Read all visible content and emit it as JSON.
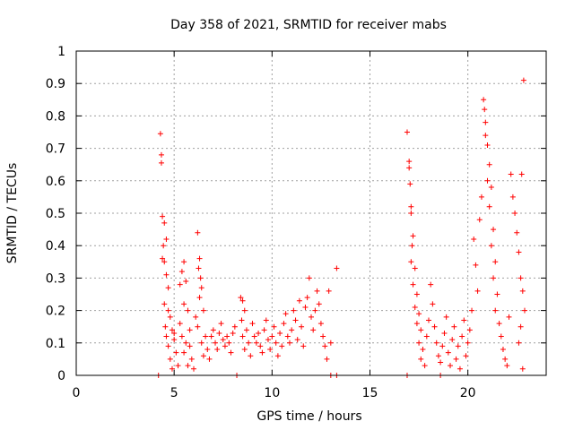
{
  "chart_data": {
    "type": "scatter",
    "title": "Day 358 of 2021, SRMTID for receiver mabs",
    "xlabel": "GPS time / hours",
    "ylabel": "SRMTID / TECUs",
    "xlim": [
      0,
      24
    ],
    "ylim": [
      0,
      1
    ],
    "xticks": [
      0,
      5,
      10,
      15,
      20
    ],
    "xtick_labels": [
      "0",
      "5",
      "10",
      "15",
      "20"
    ],
    "yticks": [
      0,
      0.1,
      0.2,
      0.3,
      0.4,
      0.5,
      0.6,
      0.7,
      0.8,
      0.9,
      1
    ],
    "ytick_labels": [
      "0",
      "0.1",
      "0.2",
      "0.3",
      "0.4",
      "0.5",
      "0.6",
      "0.7",
      "0.8",
      "0.9",
      "1"
    ],
    "grid": true,
    "legend": "none",
    "marker": "plus",
    "color": "#ff0000",
    "series": [
      {
        "values_xy": [
          [
            4.3,
            0.745
          ],
          [
            4.35,
            0.68
          ],
          [
            4.35,
            0.655
          ],
          [
            4.4,
            0.49
          ],
          [
            4.5,
            0.47
          ],
          [
            4.45,
            0.4
          ],
          [
            4.6,
            0.42
          ],
          [
            4.4,
            0.36
          ],
          [
            4.5,
            0.35
          ],
          [
            4.6,
            0.31
          ],
          [
            4.7,
            0.27
          ],
          [
            4.5,
            0.22
          ],
          [
            4.7,
            0.2
          ],
          [
            4.8,
            0.18
          ],
          [
            4.55,
            0.15
          ],
          [
            4.9,
            0.14
          ],
          [
            4.6,
            0.12
          ],
          [
            5.0,
            0.11
          ],
          [
            4.7,
            0.09
          ],
          [
            5.1,
            0.07
          ],
          [
            4.8,
            0.05
          ],
          [
            5.2,
            0.03
          ],
          [
            4.9,
            0.02
          ],
          [
            5.0,
            0.13
          ],
          [
            5.3,
            0.16
          ],
          [
            5.5,
            0.35
          ],
          [
            5.4,
            0.32
          ],
          [
            5.6,
            0.29
          ],
          [
            5.3,
            0.28
          ],
          [
            5.5,
            0.22
          ],
          [
            5.7,
            0.2
          ],
          [
            5.4,
            0.12
          ],
          [
            5.6,
            0.1
          ],
          [
            5.8,
            0.09
          ],
          [
            5.5,
            0.07
          ],
          [
            5.9,
            0.05
          ],
          [
            5.7,
            0.03
          ],
          [
            6.0,
            0.02
          ],
          [
            5.8,
            0.14
          ],
          [
            6.1,
            0.18
          ],
          [
            6.2,
            0.44
          ],
          [
            6.3,
            0.36
          ],
          [
            6.25,
            0.33
          ],
          [
            6.35,
            0.3
          ],
          [
            6.4,
            0.27
          ],
          [
            6.3,
            0.24
          ],
          [
            6.5,
            0.2
          ],
          [
            6.2,
            0.15
          ],
          [
            6.6,
            0.12
          ],
          [
            6.4,
            0.1
          ],
          [
            6.7,
            0.08
          ],
          [
            6.5,
            0.06
          ],
          [
            6.8,
            0.05
          ],
          [
            6.9,
            0.12
          ],
          [
            7.0,
            0.14
          ],
          [
            7.1,
            0.1
          ],
          [
            7.2,
            0.08
          ],
          [
            7.3,
            0.13
          ],
          [
            7.4,
            0.16
          ],
          [
            7.5,
            0.11
          ],
          [
            7.6,
            0.09
          ],
          [
            7.7,
            0.12
          ],
          [
            7.8,
            0.1
          ],
          [
            7.9,
            0.07
          ],
          [
            8.0,
            0.13
          ],
          [
            8.1,
            0.15
          ],
          [
            8.4,
            0.24
          ],
          [
            8.5,
            0.23
          ],
          [
            8.6,
            0.2
          ],
          [
            8.45,
            0.17
          ],
          [
            8.7,
            0.14
          ],
          [
            8.5,
            0.12
          ],
          [
            8.8,
            0.1
          ],
          [
            8.6,
            0.08
          ],
          [
            8.9,
            0.06
          ],
          [
            9.0,
            0.16
          ],
          [
            9.1,
            0.12
          ],
          [
            9.2,
            0.1
          ],
          [
            9.3,
            0.13
          ],
          [
            9.4,
            0.09
          ],
          [
            9.5,
            0.07
          ],
          [
            9.6,
            0.14
          ],
          [
            9.7,
            0.17
          ],
          [
            9.8,
            0.11
          ],
          [
            9.9,
            0.08
          ],
          [
            10.0,
            0.12
          ],
          [
            10.1,
            0.15
          ],
          [
            10.2,
            0.1
          ],
          [
            10.3,
            0.06
          ],
          [
            10.4,
            0.13
          ],
          [
            10.5,
            0.09
          ],
          [
            10.6,
            0.16
          ],
          [
            10.7,
            0.19
          ],
          [
            10.8,
            0.12
          ],
          [
            10.9,
            0.1
          ],
          [
            11.0,
            0.14
          ],
          [
            11.1,
            0.2
          ],
          [
            11.2,
            0.17
          ],
          [
            11.3,
            0.11
          ],
          [
            11.4,
            0.23
          ],
          [
            11.5,
            0.15
          ],
          [
            11.6,
            0.09
          ],
          [
            11.7,
            0.21
          ],
          [
            11.8,
            0.24
          ],
          [
            11.9,
            0.3
          ],
          [
            12.0,
            0.18
          ],
          [
            12.1,
            0.14
          ],
          [
            12.2,
            0.2
          ],
          [
            12.3,
            0.26
          ],
          [
            12.4,
            0.22
          ],
          [
            12.5,
            0.16
          ],
          [
            12.6,
            0.12
          ],
          [
            12.7,
            0.09
          ],
          [
            12.8,
            0.05
          ],
          [
            12.9,
            0.26
          ],
          [
            13.0,
            0.1
          ],
          [
            13.3,
            0.33
          ],
          [
            16.9,
            0.75
          ],
          [
            17.0,
            0.66
          ],
          [
            17.0,
            0.64
          ],
          [
            17.05,
            0.59
          ],
          [
            17.1,
            0.52
          ],
          [
            17.1,
            0.5
          ],
          [
            17.2,
            0.43
          ],
          [
            17.15,
            0.4
          ],
          [
            17.1,
            0.35
          ],
          [
            17.3,
            0.33
          ],
          [
            17.2,
            0.28
          ],
          [
            17.4,
            0.25
          ],
          [
            17.3,
            0.21
          ],
          [
            17.5,
            0.19
          ],
          [
            17.4,
            0.16
          ],
          [
            17.6,
            0.14
          ],
          [
            17.5,
            0.1
          ],
          [
            17.7,
            0.08
          ],
          [
            17.6,
            0.05
          ],
          [
            17.8,
            0.03
          ],
          [
            17.9,
            0.12
          ],
          [
            18.0,
            0.17
          ],
          [
            18.1,
            0.28
          ],
          [
            18.2,
            0.22
          ],
          [
            18.3,
            0.15
          ],
          [
            18.4,
            0.1
          ],
          [
            18.5,
            0.06
          ],
          [
            18.6,
            0.04
          ],
          [
            18.7,
            0.09
          ],
          [
            18.8,
            0.13
          ],
          [
            18.9,
            0.18
          ],
          [
            19.0,
            0.07
          ],
          [
            19.1,
            0.03
          ],
          [
            19.2,
            0.11
          ],
          [
            19.3,
            0.15
          ],
          [
            19.4,
            0.05
          ],
          [
            19.5,
            0.09
          ],
          [
            19.6,
            0.02
          ],
          [
            19.7,
            0.12
          ],
          [
            19.8,
            0.17
          ],
          [
            19.9,
            0.06
          ],
          [
            20.0,
            0.1
          ],
          [
            20.1,
            0.14
          ],
          [
            20.2,
            0.2
          ],
          [
            20.3,
            0.42
          ],
          [
            20.4,
            0.34
          ],
          [
            20.5,
            0.26
          ],
          [
            20.6,
            0.48
          ],
          [
            20.7,
            0.55
          ],
          [
            20.8,
            0.85
          ],
          [
            20.85,
            0.82
          ],
          [
            20.9,
            0.78
          ],
          [
            20.9,
            0.74
          ],
          [
            21.0,
            0.71
          ],
          [
            21.1,
            0.65
          ],
          [
            21.0,
            0.6
          ],
          [
            21.2,
            0.58
          ],
          [
            21.1,
            0.52
          ],
          [
            21.3,
            0.45
          ],
          [
            21.2,
            0.4
          ],
          [
            21.4,
            0.35
          ],
          [
            21.3,
            0.3
          ],
          [
            21.5,
            0.25
          ],
          [
            21.4,
            0.2
          ],
          [
            21.6,
            0.16
          ],
          [
            21.7,
            0.12
          ],
          [
            21.8,
            0.08
          ],
          [
            21.9,
            0.05
          ],
          [
            22.0,
            0.03
          ],
          [
            22.1,
            0.18
          ],
          [
            22.2,
            0.62
          ],
          [
            22.3,
            0.55
          ],
          [
            22.4,
            0.5
          ],
          [
            22.5,
            0.44
          ],
          [
            22.6,
            0.38
          ],
          [
            22.7,
            0.3
          ],
          [
            22.75,
            0.62
          ],
          [
            22.8,
            0.26
          ],
          [
            22.85,
            0.91
          ],
          [
            22.9,
            0.2
          ],
          [
            22.7,
            0.15
          ],
          [
            22.6,
            0.1
          ],
          [
            22.8,
            0.02
          ],
          [
            4.2,
            0.0
          ],
          [
            8.2,
            0.0
          ],
          [
            13.0,
            0.0
          ],
          [
            13.3,
            0.0
          ],
          [
            16.9,
            0.0
          ],
          [
            18.6,
            0.0
          ]
        ]
      }
    ]
  }
}
